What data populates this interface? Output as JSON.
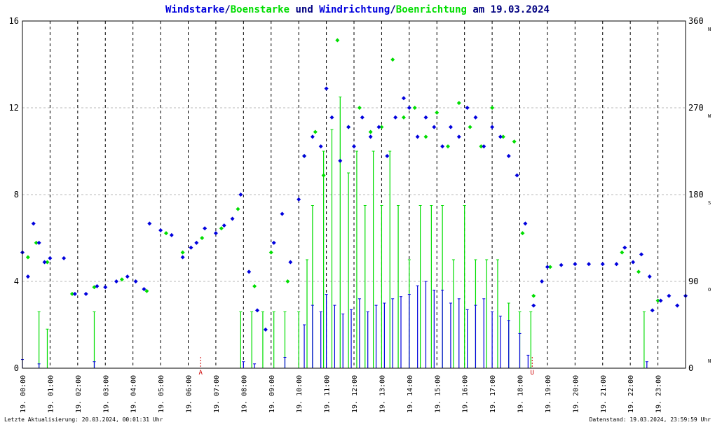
{
  "title": {
    "part1": "Windstarke",
    "slash1": "/",
    "part2": "Boenstarke",
    "part3": " und ",
    "part4": "Windrichtung",
    "slash2": "/",
    "part5": "Boenrichtung",
    "part6": " am 19.03.2024"
  },
  "colors": {
    "wind": "#0000dd",
    "gust": "#00dd00",
    "title_dark": "#000080",
    "marker": "#cc0000",
    "grid": "#b8b8b8",
    "vline": "#000000"
  },
  "footer": {
    "left": "Letzte Aktualisierung: 20.03.2024, 00:01:31 Uhr",
    "right": "Datenstand: 19.03.2024, 23:59:59 Uhr"
  },
  "markers": {
    "sunrise": "A",
    "sunset": "U",
    "sunrise_hour": 6.45,
    "sunset_hour": 18.45
  },
  "chart_data": {
    "type": "scatter",
    "x_unit": "hour of day",
    "x_ticks": [
      "19. 00:00",
      "19. 01:00",
      "19. 02:00",
      "19. 03:00",
      "19. 04:00",
      "19. 05:00",
      "19. 06:00",
      "19. 07:00",
      "19. 08:00",
      "19. 09:00",
      "19. 10:00",
      "19. 11:00",
      "19. 12:00",
      "19. 13:00",
      "19. 14:00",
      "19. 15:00",
      "19. 16:00",
      "19. 17:00",
      "19. 18:00",
      "19. 19:00",
      "19. 20:00",
      "19. 21:00",
      "19. 22:00",
      "19. 23:00"
    ],
    "xlim": [
      0,
      24
    ],
    "y_left": {
      "ylim": [
        0,
        16
      ],
      "ticks": [
        "0",
        "4",
        "8",
        "12",
        "16"
      ]
    },
    "y_right": {
      "ylim": [
        0,
        360
      ],
      "ticks": [
        "0",
        "90",
        "180",
        "270",
        "360"
      ],
      "compass": [
        "N",
        "O",
        "S",
        "W",
        "N"
      ]
    },
    "grid": true,
    "series": [
      {
        "name": "Windstarke",
        "role": "wind speed (bars)",
        "points": [
          [
            0.0,
            0.4
          ],
          [
            0.6,
            0.2
          ],
          [
            1.0,
            0.0
          ],
          [
            2.6,
            0.3
          ],
          [
            8.0,
            0.3
          ],
          [
            8.4,
            0.2
          ],
          [
            9.5,
            0.5
          ],
          [
            10.2,
            2.0
          ],
          [
            10.5,
            2.9
          ],
          [
            10.8,
            2.6
          ],
          [
            11.0,
            3.4
          ],
          [
            11.3,
            2.9
          ],
          [
            11.6,
            2.5
          ],
          [
            11.9,
            2.7
          ],
          [
            12.2,
            3.2
          ],
          [
            12.5,
            2.6
          ],
          [
            12.8,
            2.9
          ],
          [
            13.1,
            3.0
          ],
          [
            13.4,
            3.2
          ],
          [
            13.7,
            3.3
          ],
          [
            14.0,
            3.4
          ],
          [
            14.3,
            3.8
          ],
          [
            14.6,
            4.0
          ],
          [
            14.9,
            3.6
          ],
          [
            15.2,
            3.6
          ],
          [
            15.5,
            3.0
          ],
          [
            15.8,
            3.2
          ],
          [
            16.1,
            2.7
          ],
          [
            16.4,
            2.9
          ],
          [
            16.7,
            3.2
          ],
          [
            17.0,
            2.6
          ],
          [
            17.3,
            2.4
          ],
          [
            17.6,
            2.2
          ],
          [
            18.0,
            1.6
          ],
          [
            18.3,
            0.6
          ],
          [
            22.6,
            0.3
          ]
        ]
      },
      {
        "name": "Boenstarke",
        "role": "gust speed (bars)",
        "points": [
          [
            0.6,
            2.6
          ],
          [
            0.9,
            1.8
          ],
          [
            2.6,
            2.6
          ],
          [
            7.9,
            2.6
          ],
          [
            8.3,
            2.6
          ],
          [
            8.7,
            2.6
          ],
          [
            9.1,
            2.6
          ],
          [
            9.5,
            2.6
          ],
          [
            10.0,
            2.6
          ],
          [
            10.3,
            5.0
          ],
          [
            10.5,
            7.5
          ],
          [
            10.9,
            10.0
          ],
          [
            11.2,
            11.0
          ],
          [
            11.5,
            12.5
          ],
          [
            11.8,
            9.0
          ],
          [
            12.1,
            10.0
          ],
          [
            12.4,
            7.5
          ],
          [
            12.7,
            10.0
          ],
          [
            13.0,
            7.5
          ],
          [
            13.3,
            10.0
          ],
          [
            13.6,
            7.5
          ],
          [
            14.0,
            5.0
          ],
          [
            14.4,
            7.5
          ],
          [
            14.8,
            7.5
          ],
          [
            15.2,
            7.5
          ],
          [
            15.6,
            5.0
          ],
          [
            16.0,
            7.5
          ],
          [
            16.4,
            5.0
          ],
          [
            16.8,
            5.0
          ],
          [
            17.2,
            5.0
          ],
          [
            17.6,
            3.0
          ],
          [
            18.0,
            2.6
          ],
          [
            18.4,
            2.6
          ],
          [
            22.5,
            2.6
          ]
        ]
      },
      {
        "name": "Windrichtung",
        "role": "wind direction (degrees, blue dots)",
        "points": [
          [
            0.0,
            120
          ],
          [
            0.2,
            95
          ],
          [
            0.4,
            150
          ],
          [
            0.6,
            130
          ],
          [
            0.8,
            110
          ],
          [
            1.0,
            114
          ],
          [
            1.5,
            114
          ],
          [
            1.9,
            77
          ],
          [
            2.3,
            77
          ],
          [
            2.7,
            85
          ],
          [
            3.0,
            84
          ],
          [
            3.4,
            90
          ],
          [
            3.8,
            95
          ],
          [
            4.1,
            90
          ],
          [
            4.4,
            82
          ],
          [
            4.6,
            150
          ],
          [
            5.0,
            143
          ],
          [
            5.4,
            138
          ],
          [
            5.8,
            115
          ],
          [
            6.1,
            125
          ],
          [
            6.3,
            130
          ],
          [
            6.6,
            145
          ],
          [
            7.0,
            140
          ],
          [
            7.3,
            148
          ],
          [
            7.6,
            155
          ],
          [
            7.9,
            180
          ],
          [
            8.2,
            100
          ],
          [
            8.5,
            60
          ],
          [
            8.8,
            40
          ],
          [
            9.1,
            130
          ],
          [
            9.4,
            160
          ],
          [
            9.7,
            110
          ],
          [
            10.0,
            175
          ],
          [
            10.2,
            220
          ],
          [
            10.5,
            240
          ],
          [
            10.8,
            230
          ],
          [
            11.0,
            290
          ],
          [
            11.2,
            260
          ],
          [
            11.5,
            215
          ],
          [
            11.8,
            250
          ],
          [
            12.0,
            230
          ],
          [
            12.3,
            260
          ],
          [
            12.6,
            240
          ],
          [
            12.9,
            250
          ],
          [
            13.2,
            220
          ],
          [
            13.5,
            260
          ],
          [
            13.8,
            280
          ],
          [
            14.0,
            270
          ],
          [
            14.3,
            240
          ],
          [
            14.6,
            260
          ],
          [
            14.9,
            250
          ],
          [
            15.2,
            230
          ],
          [
            15.5,
            250
          ],
          [
            15.8,
            240
          ],
          [
            16.1,
            270
          ],
          [
            16.4,
            260
          ],
          [
            16.7,
            230
          ],
          [
            17.0,
            250
          ],
          [
            17.3,
            240
          ],
          [
            17.6,
            220
          ],
          [
            17.9,
            200
          ],
          [
            18.2,
            150
          ],
          [
            18.5,
            65
          ],
          [
            18.8,
            90
          ],
          [
            19.0,
            105
          ],
          [
            19.5,
            107
          ],
          [
            20.0,
            108
          ],
          [
            20.5,
            108
          ],
          [
            21.0,
            108
          ],
          [
            21.5,
            108
          ],
          [
            21.8,
            125
          ],
          [
            22.1,
            110
          ],
          [
            22.4,
            118
          ],
          [
            22.7,
            95
          ],
          [
            22.8,
            60
          ],
          [
            23.1,
            70
          ],
          [
            23.4,
            75
          ],
          [
            23.7,
            65
          ],
          [
            24.0,
            75
          ]
        ]
      },
      {
        "name": "Boenrichtung",
        "role": "gust direction (degrees, green dots)",
        "points": [
          [
            0.2,
            115
          ],
          [
            0.5,
            130
          ],
          [
            0.9,
            110
          ],
          [
            1.8,
            77
          ],
          [
            2.6,
            84
          ],
          [
            3.6,
            92
          ],
          [
            4.5,
            80
          ],
          [
            5.2,
            140
          ],
          [
            5.8,
            120
          ],
          [
            6.5,
            135
          ],
          [
            7.2,
            145
          ],
          [
            7.8,
            165
          ],
          [
            8.4,
            85
          ],
          [
            9.0,
            120
          ],
          [
            9.6,
            90
          ],
          [
            10.2,
            220
          ],
          [
            10.6,
            245
          ],
          [
            10.9,
            200
          ],
          [
            11.4,
            340
          ],
          [
            11.8,
            250
          ],
          [
            12.2,
            270
          ],
          [
            12.6,
            245
          ],
          [
            13.0,
            250
          ],
          [
            13.4,
            320
          ],
          [
            13.8,
            260
          ],
          [
            14.2,
            270
          ],
          [
            14.6,
            240
          ],
          [
            15.0,
            265
          ],
          [
            15.4,
            230
          ],
          [
            15.8,
            275
          ],
          [
            16.2,
            250
          ],
          [
            16.6,
            230
          ],
          [
            17.0,
            270
          ],
          [
            17.4,
            240
          ],
          [
            17.8,
            235
          ],
          [
            18.1,
            140
          ],
          [
            18.5,
            75
          ],
          [
            19.1,
            105
          ],
          [
            21.7,
            120
          ],
          [
            22.3,
            100
          ],
          [
            23.0,
            70
          ]
        ]
      }
    ]
  }
}
